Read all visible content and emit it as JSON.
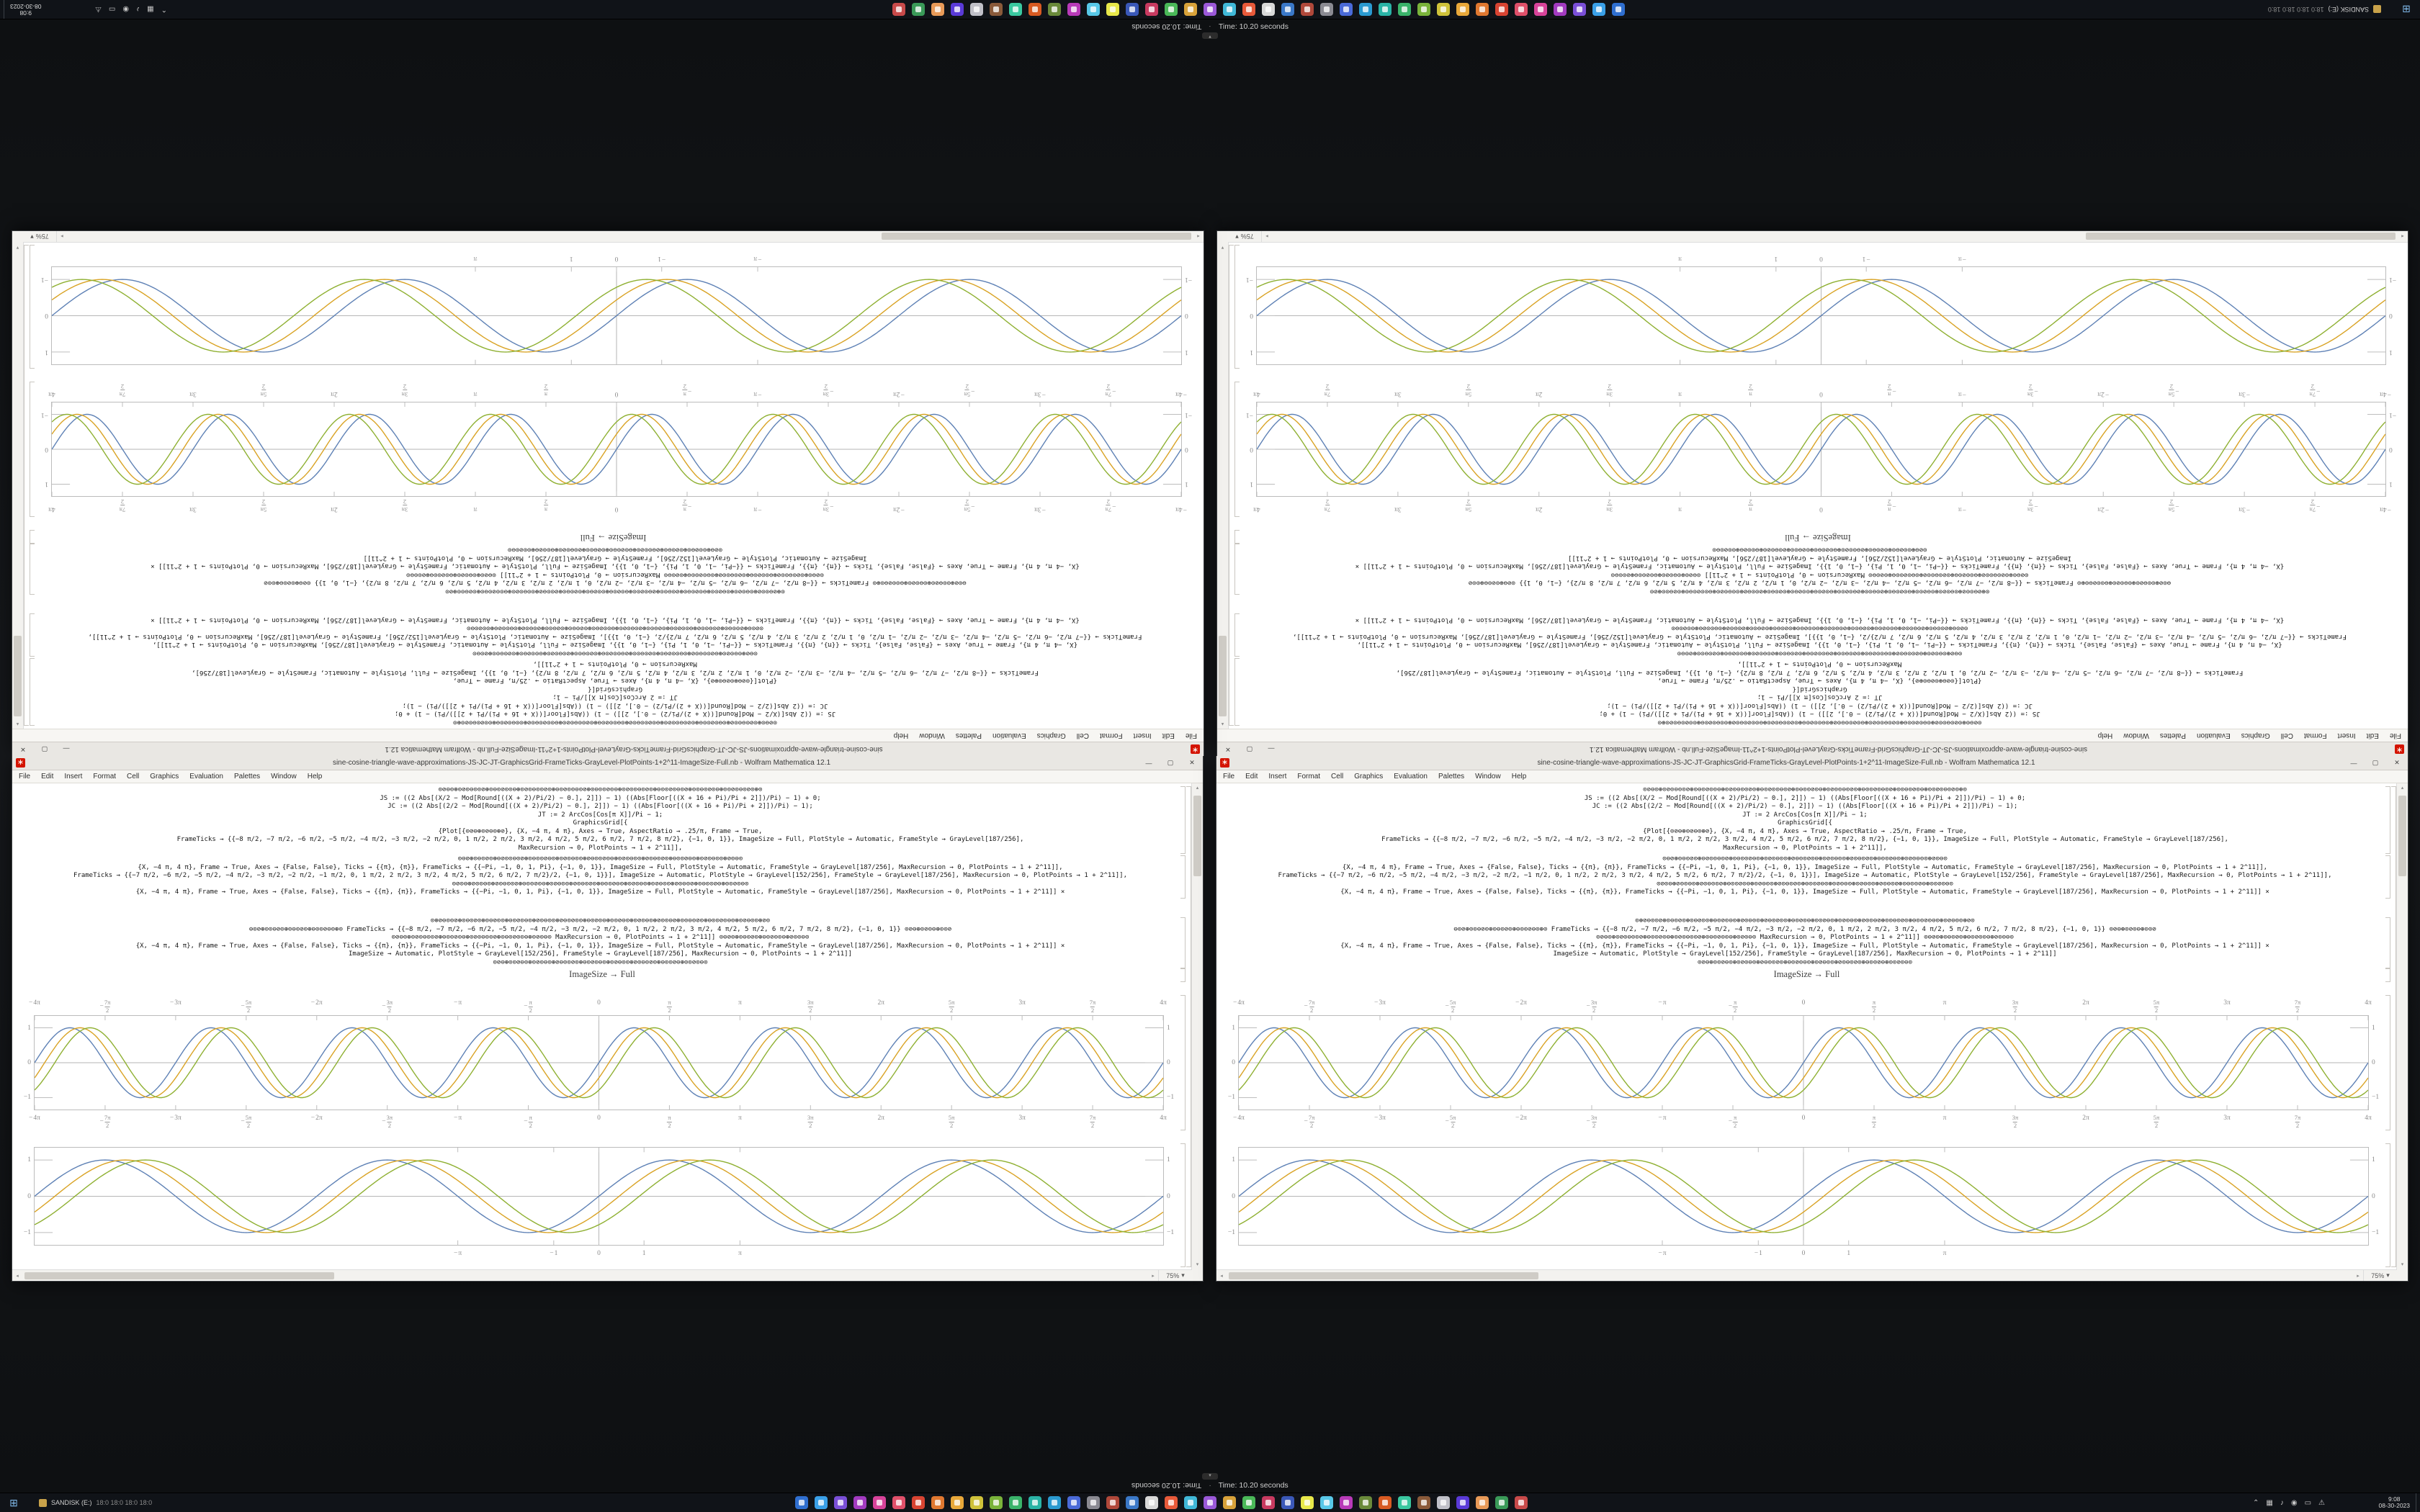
{
  "env": {
    "time_text": "Time: 10.20 seconds",
    "separator": "·",
    "collapse_glyph": "▾"
  },
  "taskbar": {
    "start_glyph": "⊞",
    "drive_label": "SANDISK (E:)",
    "drive_extra": "18:0    18:0    18:0    18:0",
    "pinned_colors": [
      "#2f6fd0",
      "#3aa0e8",
      "#7a4fd8",
      "#a23ac0",
      "#d8439a",
      "#e0506a",
      "#d84432",
      "#e07830",
      "#e8a83a",
      "#cfc23a",
      "#7ab33a",
      "#3ab36a",
      "#2ab3a6",
      "#2a9ad0",
      "#4a6ad8",
      "#8a8a92",
      "#b0483a",
      "#3a78c8",
      "#d8d8d8",
      "#e85a3a",
      "#40b8d8",
      "#9a58d8",
      "#d8a23a",
      "#4ab858",
      "#c83a60",
      "#3a58b8",
      "#e8e84a",
      "#58c8e8",
      "#b83ab8",
      "#6a8a3a",
      "#d85a22",
      "#3ac8a0",
      "#8a5a3a",
      "#c0c0c8",
      "#5a3ad8",
      "#e89a58",
      "#3a9a58",
      "#c84a4a"
    ],
    "tray_icons": [
      {
        "name": "hidden-icons-chevron",
        "glyph": "⌃"
      },
      {
        "name": "network",
        "glyph": "▦"
      },
      {
        "name": "volume",
        "glyph": "♪"
      },
      {
        "name": "onedrive",
        "glyph": "◉"
      },
      {
        "name": "battery",
        "glyph": "▭"
      },
      {
        "name": "action-center",
        "glyph": "⚠"
      }
    ],
    "clock_time": "9:08",
    "clock_date": "08-30-2023"
  },
  "window": {
    "title": "sine-cosine-triangle-wave-approximations-JS-JC-JT-GraphicsGrid-FrameTicks-GrayLevel-PlotPoints-1+2^11-ImageSize-Full.nb - Wolfram Mathematica 12.1",
    "icon_glyph": "∗",
    "minimize_glyph": "—",
    "maximize_glyph": "▢",
    "close_glyph": "✕",
    "menu": [
      "File",
      "Edit",
      "Insert",
      "Format",
      "Cell",
      "Graphics",
      "Evaluation",
      "Palettes",
      "Window",
      "Help"
    ],
    "caption": "ImageSize → Full",
    "zoom_label": "75%",
    "zoom_caret": "▾",
    "scroll_up": "▴",
    "scroll_down": "▾",
    "scroll_left": "◂",
    "scroll_right": "▸",
    "code_blocks": [
      [
        "⊙⊘⊖⊙⊕⊙⊘⊙⊖⊙⊙⊘⊕⊙⊖⊙⊘⊙⊙⊖⊕⊙⊘⊙⊖⊙⊙⊘⊙⊕⊖⊙⊘⊙⊙⊖⊙⊘⊕⊙⊖⊙⊙⊘⊙⊖⊕⊙⊘⊙⊙⊖⊙⊘⊙⊕⊖⊙⊙⊘⊙⊖⊙⊘⊕⊙⊙⊖⊙⊘⊙⊖⊕⊙⊙⊘⊙⊖⊙⊘⊙⊕⊙",
        "JS := ((2 Abs[(X/2 − Mod[Round[((X + 2)/Pi/2) − 0.], 2]]) − 1) ((Abs[Floor[((X + 16 + Pi)/Pi + 2]])/Pi) − 1) + 0;",
        "JC := ((2 Abs[(2/2 − Mod[Round[((X + 2)/Pi/2) − 0.], 2]]) − 1) ((Abs[Floor[((X + 16 + Pi)/Pi + 2]])/Pi) − 1);",
        "JT := 2 ArcCos[Cos[π X]]/Pi − 1;",
        "GraphicsGrid[{",
        "{Plot[{⊙⊘⊖⊕⊙⊘⊖⊙⊕⊘}, {X, −4 π, 4 π}, Axes → True, AspectRatio → .25/π, Frame → True,",
        "FrameTicks → {{−8 π/2, −7 π/2, −6 π/2, −5 π/2, −4 π/2, −3 π/2, −2 π/2, 0, 1 π/2, 2 π/2, 3 π/2, 4 π/2, 5 π/2, 6 π/2, 7 π/2, 8 π/2}, {−1, 0, 1}}, ImageSize → Full, PlotStyle → Automatic, FrameStyle → GrayLevel[187/256],",
        "MaxRecursion → 0, PlotPoints → 1 + 2^11]],"
      ],
      [
        "⊙⊖⊘⊕⊙⊖⊙⊘⊙⊕⊖⊘⊙⊙⊖⊙⊘⊕⊙⊖⊙⊙⊘⊖⊙⊕⊙⊘⊙⊖⊙⊙⊕⊘⊖⊙⊙⊘⊙⊖⊕⊙⊘⊙⊖⊙⊙⊕⊘⊙⊖⊙⊘⊙⊕⊖⊙⊙⊘⊖⊙⊕⊙⊘⊙⊖⊙⊙⊕⊘⊙⊖⊙",
        "{X, −4 π, 4 π}, Frame → True, Axes → {False, False}, Ticks → {{π}, {π}}, FrameTicks → {{−Pi, −1, 0, 1, Pi}, {−1, 0, 1}}, ImageSize → Full, PlotStyle → Automatic, FrameStyle → GrayLevel[187/256], MaxRecursion → 0, PlotPoints → 1 + 2^11]],",
        "FrameTicks → {{−7 π/2, −6 π/2, −5 π/2, −4 π/2, −3 π/2, −2 π/2, −1 π/2, 0, 1 π/2, 2 π/2, 3 π/2, 4 π/2, 5 π/2, 6 π/2, 7 π/2}/2, {−1, 0, 1}}], ImageSize → Automatic, PlotStyle → GrayLevel[152/256], FrameStyle → GrayLevel[187/256], MaxRecursion → 0, PlotPoints → 1 + 2^11]],",
        "⊙⊘⊙⊖⊕⊘⊙⊙⊖⊙⊕⊘⊙⊖⊙⊙⊘⊕⊖⊙⊙⊘⊙⊖⊕⊙⊘⊖⊙⊙⊕⊘⊙⊖⊙⊘⊙⊕⊖⊙⊙⊘⊖⊙⊕⊙⊘⊙⊖⊙⊕⊙⊘⊖⊙⊙⊕⊘⊙⊖⊙⊘⊕⊙⊖⊙⊙⊘⊖⊕⊙⊙⊘⊙⊖⊙",
        "{X, −4 π, 4 π}, Frame → True, Axes → {False, False}, Ticks → {{π}, {π}}, FrameTicks → {{−Pi, −1, 0, 1, Pi}, {−1, 0, 1}}, ImageSize → Full, PlotStyle → Automatic, FrameStyle → GrayLevel[187/256], MaxRecursion → 0, PlotPoints → 1 + 2^11]] ×"
      ],
      [
        "⊙⊕⊘⊖⊙⊙⊘⊕⊙⊖⊙⊘⊙⊕⊙⊖⊘⊙⊙⊕⊖⊙⊘⊙⊖⊙⊕⊘⊙⊖⊙⊙⊕⊘⊖⊙⊘⊙⊙⊕⊖⊙⊘⊙⊖⊕⊙⊙⊘⊖⊙⊕⊙⊘⊙⊖⊙⊕⊘⊙⊙⊖⊘⊕⊙⊙⊖⊙⊘⊙⊕⊖⊙⊙⊘⊙⊖⊙⊕⊙⊘⊖⊙⊙⊕⊘⊙",
        "⊖⊙⊘⊕⊙⊙⊖⊘⊙⊕⊙⊖⊙⊘⊙⊕⊖⊙⊙⊘⊖⊙⊕⊙  FrameTicks → {{−8 π/2, −7 π/2, −6 π/2, −5 π/2, −4 π/2, −3 π/2, −2 π/2, 0, 1 π/2, 2 π/2, 3 π/2, 4 π/2, 5 π/2, 6 π/2, 7 π/2, 8 π/2}, {−1, 0, 1}}  ⊙⊘⊖⊕⊙⊘⊙⊖⊕⊙⊙⊘",
        "⊙⊘⊖⊙⊕⊙⊘⊙⊖⊙⊙⊘⊕⊖⊙⊙⊘⊙⊖⊕⊙⊘⊙⊖⊙⊙⊘⊕⊙⊖⊙⊘⊙⊙⊖⊕⊙⊘⊙⊖⊙  MaxRecursion → 0, PlotPoints → 1 + 2^11]]  ⊙⊖⊘⊙⊕⊙⊖⊙⊘⊙⊕⊖⊙⊘⊙⊙⊖⊕⊘⊙⊙⊖⊙",
        "{X, −4 π, 4 π}, Frame → True, Axes → {False, False}, Ticks → {{π}, {π}}, FrameTicks → {{−Pi, −1, 0, 1, Pi}, {−1, 0, 1}}, ImageSize → Full, PlotStyle → Automatic, FrameStyle → GrayLevel[187/256], MaxRecursion → 0, PlotPoints → 1 + 2^11]] ×",
        "ImageSize → Automatic, PlotStyle → GrayLevel[152/256], FrameStyle → GrayLevel[187/256], MaxRecursion → 0, PlotPoints → 1 + 2^11]]",
        "⊙⊘⊖⊕⊙⊙⊘⊖⊙⊕⊙⊘⊙⊖⊙⊕⊘⊖⊙⊙⊘⊙⊕⊖⊙⊘⊙⊖⊙⊕⊙⊘⊖⊙⊙⊕⊘⊙⊖⊙⊘⊙⊕⊖⊙⊙⊘⊖⊕⊙⊙⊘⊙⊖⊙"
      ]
    ]
  },
  "chart_data": [
    {
      "type": "line",
      "id": "upper-grid-row-plot",
      "title": "",
      "xlabel": "",
      "ylabel": "",
      "xlim": [
        -12.566,
        12.566
      ],
      "ylim": [
        -1,
        1
      ],
      "frame": true,
      "axes": true,
      "x_labels_top": true,
      "x_ticks": [
        {
          "pos": 0.0,
          "label": "-4π"
        },
        {
          "pos": 0.0625,
          "label": "-7π/2"
        },
        {
          "pos": 0.125,
          "label": "-3π"
        },
        {
          "pos": 0.1875,
          "label": "-5π/2"
        },
        {
          "pos": 0.25,
          "label": "-2π"
        },
        {
          "pos": 0.3125,
          "label": "-3π/2"
        },
        {
          "pos": 0.375,
          "label": "-π"
        },
        {
          "pos": 0.4375,
          "label": "-π/2"
        },
        {
          "pos": 0.5,
          "label": "0"
        },
        {
          "pos": 0.5625,
          "label": "π/2"
        },
        {
          "pos": 0.625,
          "label": "π"
        },
        {
          "pos": 0.6875,
          "label": "3π/2"
        },
        {
          "pos": 0.75,
          "label": "2π"
        },
        {
          "pos": 0.8125,
          "label": "5π/2"
        },
        {
          "pos": 0.875,
          "label": "3π"
        },
        {
          "pos": 0.9375,
          "label": "7π/2"
        },
        {
          "pos": 1.0,
          "label": "4π"
        }
      ],
      "y_ticks": [
        {
          "pos": 0.127,
          "label": "1"
        },
        {
          "pos": 0.5,
          "label": "0"
        },
        {
          "pos": 0.873,
          "label": "-1"
        }
      ],
      "series": [
        {
          "name": "JS",
          "color": "#5e81b5",
          "freq": 2,
          "phase": 0,
          "amp": 0.8
        },
        {
          "name": "JC",
          "color": "#d9a324",
          "freq": 2,
          "phase": 0.45,
          "amp": 0.8
        },
        {
          "name": "JT",
          "color": "#8fb032",
          "freq": 2,
          "phase": 0.9,
          "amp": 0.8
        }
      ]
    },
    {
      "type": "line",
      "id": "lower-grid-row-plot",
      "title": "",
      "xlabel": "",
      "ylabel": "",
      "xlim": [
        -12.566,
        12.566
      ],
      "ylim": [
        -1,
        1
      ],
      "frame": true,
      "axes": true,
      "x_labels_top": false,
      "x_ticks": [
        {
          "pos": 0.375,
          "label": "-π"
        },
        {
          "pos": 0.46,
          "label": "-1"
        },
        {
          "pos": 0.5,
          "label": "0"
        },
        {
          "pos": 0.54,
          "label": "1"
        },
        {
          "pos": 0.625,
          "label": "π"
        }
      ],
      "y_ticks": [
        {
          "pos": 0.127,
          "label": "1"
        },
        {
          "pos": 0.5,
          "label": "0"
        },
        {
          "pos": 0.873,
          "label": "-1"
        }
      ],
      "series": [
        {
          "name": "JS",
          "color": "#5e81b5",
          "freq": 1,
          "phase": 0,
          "amp": 0.8
        },
        {
          "name": "JC",
          "color": "#d9a324",
          "freq": 1,
          "phase": 0.45,
          "amp": 0.8
        },
        {
          "name": "JT",
          "color": "#8fb032",
          "freq": 1,
          "phase": 0.9,
          "amp": 0.8
        }
      ]
    }
  ]
}
